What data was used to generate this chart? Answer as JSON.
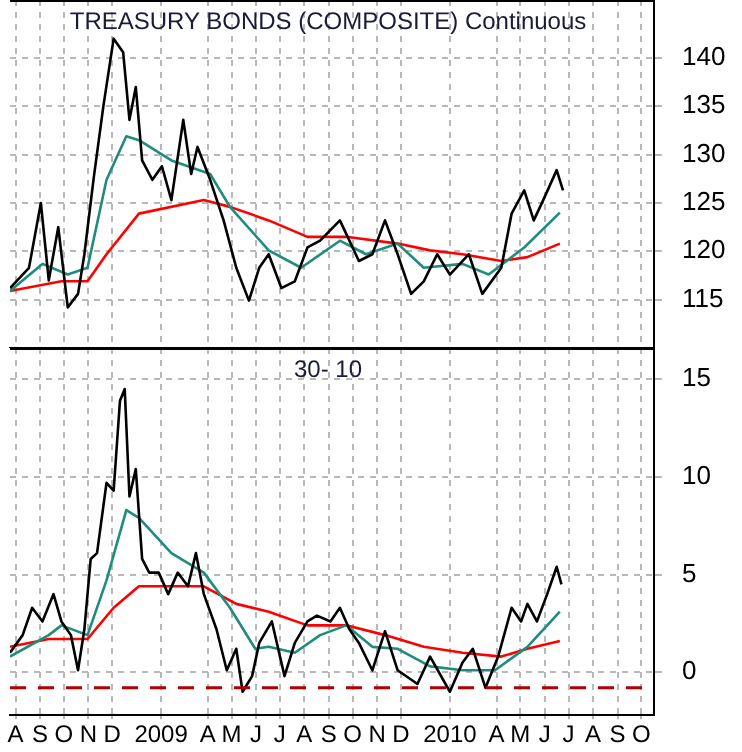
{
  "chart_data": [
    {
      "type": "line",
      "title": "TREASURY BONDS (COMPOSITE) Continuous",
      "xlim": [
        "2008-08-08",
        "2010-10-31"
      ],
      "ylim": [
        110,
        146
      ],
      "yticks": [
        115,
        120,
        125,
        130,
        135,
        140
      ],
      "tick_labels": "y",
      "grid": true,
      "legend": false,
      "marker": "none",
      "line_style": "solid",
      "xticks": [
        {
          "value": "2008-08-15",
          "label": null
        },
        {
          "value": "2008-09-15",
          "label": null
        },
        {
          "value": "2008-10-15",
          "label": null
        },
        {
          "value": "2008-11-15",
          "label": null
        },
        {
          "value": "2008-12-15",
          "label": null
        },
        {
          "value": "2009-02-15",
          "label": null
        },
        {
          "value": "2009-04-15",
          "label": null
        },
        {
          "value": "2009-05-15",
          "label": null
        },
        {
          "value": "2009-06-15",
          "label": null
        },
        {
          "value": "2009-07-15",
          "label": null
        },
        {
          "value": "2009-08-15",
          "label": null
        },
        {
          "value": "2009-09-15",
          "label": null
        },
        {
          "value": "2009-10-15",
          "label": null
        },
        {
          "value": "2009-11-15",
          "label": null
        },
        {
          "value": "2009-12-15",
          "label": null
        },
        {
          "value": "2010-02-15",
          "label": null
        },
        {
          "value": "2010-04-15",
          "label": null
        },
        {
          "value": "2010-05-15",
          "label": null
        },
        {
          "value": "2010-06-15",
          "label": null
        },
        {
          "value": "2010-07-15",
          "label": null
        },
        {
          "value": "2010-08-15",
          "label": null
        },
        {
          "value": "2010-09-15",
          "label": null
        },
        {
          "value": "2010-10-15",
          "label": null
        }
      ],
      "series": [
        {
          "color": "#000000",
          "x": [
            "2008-08-08",
            "2008-09-01",
            "2008-09-16",
            "2008-09-26",
            "2008-10-08",
            "2008-10-20",
            "2008-11-02",
            "2008-11-10",
            "2008-11-22",
            "2008-12-04",
            "2008-12-17",
            "2008-12-29",
            "2009-01-06",
            "2009-01-14",
            "2009-01-22",
            "2009-02-04",
            "2009-02-16",
            "2009-02-28",
            "2009-03-15",
            "2009-03-25",
            "2009-04-02",
            "2009-04-18",
            "2009-05-05",
            "2009-05-21",
            "2009-06-06",
            "2009-06-19",
            "2009-07-01",
            "2009-07-17",
            "2009-08-03",
            "2009-08-19",
            "2009-09-04",
            "2009-09-29",
            "2009-10-23",
            "2009-11-09",
            "2009-11-25",
            "2009-12-11",
            "2009-12-28",
            "2010-01-13",
            "2010-01-30",
            "2010-02-15",
            "2010-03-11",
            "2010-03-28",
            "2010-04-21",
            "2010-05-04",
            "2010-05-20",
            "2010-06-01",
            "2010-06-13",
            "2010-06-30",
            "2010-07-08"
          ],
          "values": [
            116.2,
            118.3,
            125,
            117,
            122.5,
            114.2,
            115.6,
            119.7,
            127.7,
            135,
            142,
            140.6,
            133.6,
            137,
            129.4,
            127.4,
            128.8,
            125.3,
            133.6,
            128,
            130.8,
            127.4,
            123.2,
            118.3,
            114.9,
            118.3,
            119.7,
            116.2,
            116.9,
            120.4,
            121.1,
            123.2,
            119,
            119.7,
            123.2,
            119.7,
            115.6,
            116.9,
            119.7,
            117.6,
            119.7,
            115.6,
            118.3,
            123.9,
            126.3,
            123.2,
            125.3,
            128.4,
            126.3
          ]
        },
        {
          "color": "#1f8c7c",
          "x": [
            "2008-08-08",
            "2008-09-18",
            "2008-10-20",
            "2008-11-14",
            "2008-12-08",
            "2009-01-02",
            "2009-01-18",
            "2009-02-28",
            "2009-04-18",
            "2009-05-13",
            "2009-07-01",
            "2009-08-11",
            "2009-09-29",
            "2009-11-01",
            "2009-12-11",
            "2010-01-13",
            "2010-03-03",
            "2010-04-05",
            "2010-05-20",
            "2010-07-04"
          ],
          "values": [
            115.9,
            118.7,
            117.6,
            118.3,
            127.4,
            131.9,
            131.5,
            129.4,
            128,
            124.6,
            120.1,
            118.3,
            121.1,
            119.7,
            120.8,
            118.3,
            118.7,
            117.6,
            120.4,
            124
          ]
        },
        {
          "color": "#ff0000",
          "x": [
            "2008-08-08",
            "2008-10-12",
            "2008-11-14",
            "2008-12-08",
            "2009-01-18",
            "2009-04-10",
            "2009-05-13",
            "2009-07-01",
            "2009-08-19",
            "2009-10-07",
            "2009-12-11",
            "2010-01-21",
            "2010-03-03",
            "2010-04-21",
            "2010-05-24",
            "2010-07-04"
          ],
          "values": [
            115.9,
            116.9,
            116.9,
            119.7,
            123.9,
            125.3,
            124.6,
            123.2,
            121.5,
            121.5,
            120.8,
            120.1,
            119.7,
            119,
            119.4,
            120.8
          ]
        }
      ]
    },
    {
      "type": "line",
      "title": "30- 10",
      "xlim": [
        "2008-08-08",
        "2010-10-31"
      ],
      "ylim": [
        -2.2,
        16.6
      ],
      "yticks": [
        0,
        5,
        10,
        15
      ],
      "grid": true,
      "legend": false,
      "marker": "none",
      "line_style": "solid",
      "xticks": [
        {
          "value": "2008-08-15",
          "label": "A"
        },
        {
          "value": "2008-09-15",
          "label": "S"
        },
        {
          "value": "2008-10-15",
          "label": "O"
        },
        {
          "value": "2008-11-15",
          "label": "N"
        },
        {
          "value": "2008-12-15",
          "label": "D"
        },
        {
          "value": "2009-02-15",
          "label": "2009"
        },
        {
          "value": "2009-04-15",
          "label": "A"
        },
        {
          "value": "2009-05-15",
          "label": "M"
        },
        {
          "value": "2009-06-15",
          "label": "J"
        },
        {
          "value": "2009-07-15",
          "label": "J"
        },
        {
          "value": "2009-08-15",
          "label": "A"
        },
        {
          "value": "2009-09-15",
          "label": "S"
        },
        {
          "value": "2009-10-15",
          "label": "O"
        },
        {
          "value": "2009-11-15",
          "label": "N"
        },
        {
          "value": "2009-12-15",
          "label": "D"
        },
        {
          "value": "2010-02-15",
          "label": "2010"
        },
        {
          "value": "2010-04-15",
          "label": "A"
        },
        {
          "value": "2010-05-15",
          "label": "M"
        },
        {
          "value": "2010-06-15",
          "label": "J"
        },
        {
          "value": "2010-07-15",
          "label": "J"
        },
        {
          "value": "2010-08-15",
          "label": "A"
        },
        {
          "value": "2010-09-15",
          "label": "S"
        },
        {
          "value": "2010-10-15",
          "label": "O"
        }
      ],
      "ref_lines": [
        {
          "axis": "y",
          "value": -0.8,
          "color": "#b00000",
          "line_style": "dashed"
        }
      ],
      "series": [
        {
          "color": "#000000",
          "x": [
            "2008-08-08",
            "2008-08-24",
            "2008-09-05",
            "2008-09-18",
            "2008-10-02",
            "2008-10-12",
            "2008-10-24",
            "2008-11-02",
            "2008-11-10",
            "2008-11-18",
            "2008-11-26",
            "2008-12-08",
            "2008-12-17",
            "2008-12-25",
            "2008-12-31",
            "2009-01-06",
            "2009-01-14",
            "2009-01-22",
            "2009-01-31",
            "2009-02-12",
            "2009-02-24",
            "2009-03-08",
            "2009-03-21",
            "2009-03-31",
            "2009-04-10",
            "2009-04-26",
            "2009-05-09",
            "2009-05-21",
            "2009-05-29",
            "2009-06-10",
            "2009-06-19",
            "2009-07-05",
            "2009-07-21",
            "2009-08-03",
            "2009-08-19",
            "2009-08-31",
            "2009-09-17",
            "2009-09-29",
            "2009-10-11",
            "2009-10-23",
            "2009-11-09",
            "2009-11-25",
            "2009-12-11",
            "2010-01-05",
            "2010-01-21",
            "2010-02-15",
            "2010-03-03",
            "2010-03-16",
            "2010-04-01",
            "2010-04-17",
            "2010-05-04",
            "2010-05-16",
            "2010-05-24",
            "2010-06-05",
            "2010-06-18",
            "2010-06-30",
            "2010-07-06"
          ],
          "values": [
            1,
            1.9,
            3.3,
            2.6,
            4,
            2.6,
            1.9,
            0.1,
            2.2,
            5.8,
            6.1,
            9.7,
            9.3,
            13.9,
            14.5,
            9,
            10.4,
            5.8,
            5.1,
            5.1,
            4,
            5.1,
            4.4,
            6.1,
            4,
            2.2,
            0.1,
            1.2,
            -1,
            -0.2,
            1.5,
            2.6,
            -0.2,
            1.5,
            2.6,
            2.9,
            2.6,
            3.3,
            2.2,
            1.5,
            0.1,
            2.1,
            0.1,
            -0.6,
            0.8,
            -1,
            0.5,
            1.2,
            -0.8,
            0.8,
            3.3,
            2.6,
            3.5,
            2.6,
            4,
            5.4,
            4.5
          ]
        },
        {
          "color": "#1f8c7c",
          "x": [
            "2008-08-08",
            "2008-09-26",
            "2008-10-12",
            "2008-11-14",
            "2008-12-08",
            "2009-01-02",
            "2009-01-18",
            "2009-02-28",
            "2009-04-10",
            "2009-05-13",
            "2009-06-14",
            "2009-07-01",
            "2009-08-03",
            "2009-09-04",
            "2009-10-07",
            "2009-11-09",
            "2009-12-11",
            "2010-01-21",
            "2010-03-03",
            "2010-04-13",
            "2010-05-24",
            "2010-07-04"
          ],
          "values": [
            0.8,
            1.9,
            2.4,
            1.9,
            4.7,
            8.3,
            7.9,
            6.1,
            5.1,
            3.3,
            1.2,
            1.3,
            1,
            1.9,
            2.4,
            1.3,
            1.2,
            0.3,
            0.1,
            0.1,
            1.3,
            3.1
          ]
        },
        {
          "color": "#ff0000",
          "x": [
            "2008-08-08",
            "2008-09-26",
            "2008-11-14",
            "2008-12-17",
            "2009-01-18",
            "2009-02-28",
            "2009-04-10",
            "2009-05-21",
            "2009-07-01",
            "2009-08-19",
            "2009-10-07",
            "2009-11-25",
            "2010-01-13",
            "2010-03-03",
            "2010-04-21",
            "2010-05-24",
            "2010-07-04"
          ],
          "values": [
            1.3,
            1.7,
            1.7,
            3.3,
            4.4,
            4.4,
            4.4,
            3.5,
            3.1,
            2.4,
            2.4,
            1.9,
            1.3,
            1,
            0.8,
            1.2,
            1.6
          ]
        }
      ]
    }
  ]
}
